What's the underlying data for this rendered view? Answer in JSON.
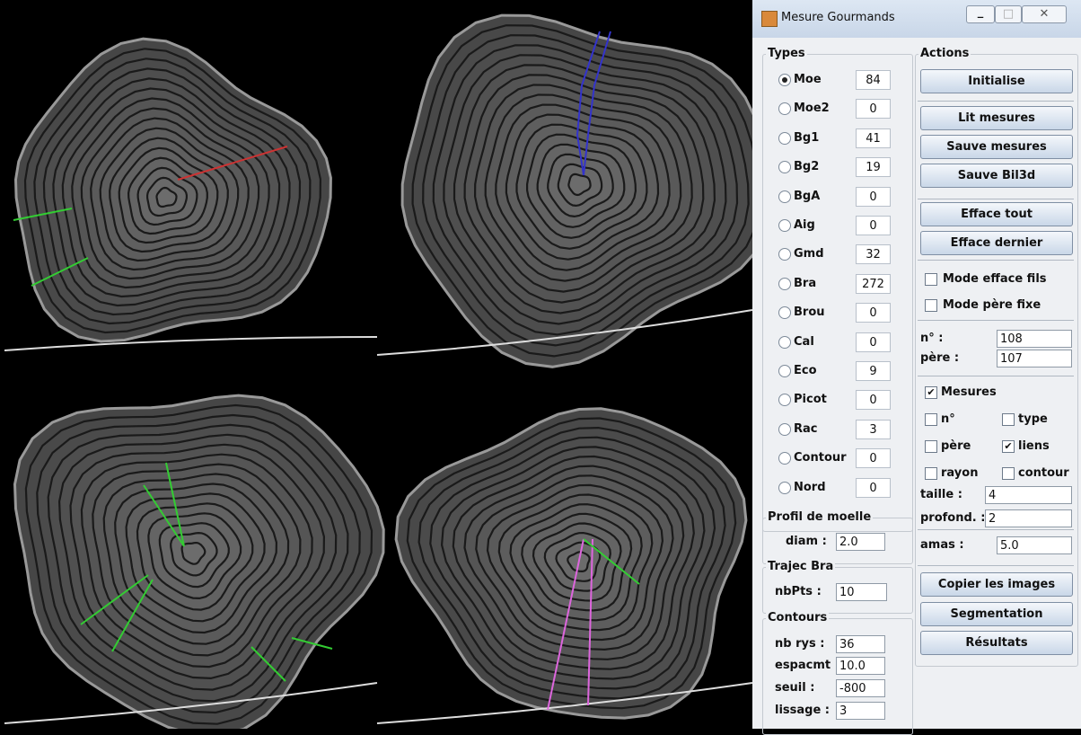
{
  "window": {
    "title": "Mesure Gourmands"
  },
  "types": {
    "title": "Types",
    "items": [
      {
        "name": "Moe",
        "count": 84,
        "selected": true
      },
      {
        "name": "Moe2",
        "count": 0
      },
      {
        "name": "Bg1",
        "count": 41
      },
      {
        "name": "Bg2",
        "count": 19
      },
      {
        "name": "BgA",
        "count": 0
      },
      {
        "name": "Aig",
        "count": 0
      },
      {
        "name": "Gmd",
        "count": 32
      },
      {
        "name": "Bra",
        "count": 272
      },
      {
        "name": "Brou",
        "count": 0
      },
      {
        "name": "Cal",
        "count": 0
      },
      {
        "name": "Eco",
        "count": 9
      },
      {
        "name": "Picot",
        "count": 0
      },
      {
        "name": "Rac",
        "count": 3
      },
      {
        "name": "Contour",
        "count": 0
      },
      {
        "name": "Nord",
        "count": 0
      }
    ]
  },
  "profil": {
    "title": "Profil de moelle",
    "label": "diam :",
    "value": "2.0"
  },
  "trajec": {
    "title": "Trajec Bra",
    "label": "nbPts :",
    "value": 10
  },
  "contours": {
    "title": "Contours",
    "fields": [
      {
        "label": "nb rys :",
        "value": 36
      },
      {
        "label": "espacmt :",
        "value": "10.0"
      },
      {
        "label": "seuil :",
        "value": -800
      },
      {
        "label": "lissage :",
        "value": 3
      }
    ]
  },
  "actions": {
    "title": "Actions",
    "buttons_top": [
      "Initialise",
      "Lit mesures",
      "Sauve mesures",
      "Sauve Bil3d",
      "Efface tout",
      "Efface dernier"
    ],
    "modes": [
      {
        "label": "Mode efface fils",
        "checked": false
      },
      {
        "label": "Mode père fixe",
        "checked": false
      }
    ],
    "ids": [
      {
        "label": "n° :",
        "value": 108
      },
      {
        "label": "père :",
        "value": 107
      }
    ],
    "mesures": {
      "label": "Mesures",
      "checked": true
    },
    "options": [
      {
        "label": "n°",
        "checked": false
      },
      {
        "label": "type",
        "checked": false
      },
      {
        "label": "père",
        "checked": false
      },
      {
        "label": "liens",
        "checked": true
      },
      {
        "label": "rayon",
        "checked": false
      },
      {
        "label": "contour",
        "checked": false
      }
    ],
    "sizes": [
      {
        "label": "taille :",
        "value": 4
      },
      {
        "label": "profond. :",
        "value": 2
      },
      {
        "label": "amas :",
        "value": "5.0"
      }
    ],
    "buttons_bottom": [
      "Copier les images",
      "Segmentation",
      "Résultats"
    ]
  }
}
